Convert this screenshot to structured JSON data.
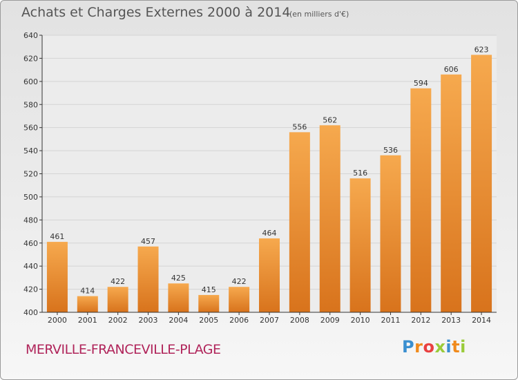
{
  "header": {
    "title": "Achats et Charges Externes 2000 à 2014",
    "unit": "(en milliers d'€)"
  },
  "footer": {
    "city": "MERVILLE-FRANCEVILLE-PLAGE",
    "brand_letters": [
      "P",
      "r",
      "o",
      "x",
      "i",
      "t",
      "i"
    ],
    "brand_colors": [
      "#3a8fd0",
      "#f08a1c",
      "#e94040",
      "#9acb3a",
      "#3a8fd0",
      "#f08a1c",
      "#9acb3a"
    ]
  },
  "colors": {
    "bar_top": "#f6a94e",
    "bar_bottom": "#d8731c",
    "grid": "#d4d4d4",
    "axis": "#333333",
    "text": "#333333"
  },
  "chart_data": {
    "type": "bar",
    "title": "Achats et Charges Externes 2000 à 2014",
    "subtitle": "(en milliers d'€)",
    "categories": [
      "2000",
      "2001",
      "2002",
      "2003",
      "2004",
      "2005",
      "2006",
      "2007",
      "2008",
      "2009",
      "2010",
      "2011",
      "2012",
      "2013",
      "2014"
    ],
    "values": [
      461,
      414,
      422,
      457,
      425,
      415,
      422,
      464,
      556,
      562,
      516,
      536,
      594,
      606,
      623
    ],
    "ylim": [
      400,
      640
    ],
    "yticks": [
      400,
      420,
      440,
      460,
      480,
      500,
      520,
      540,
      560,
      580,
      600,
      620,
      640
    ],
    "grid": true,
    "xlabel": "",
    "ylabel": ""
  }
}
